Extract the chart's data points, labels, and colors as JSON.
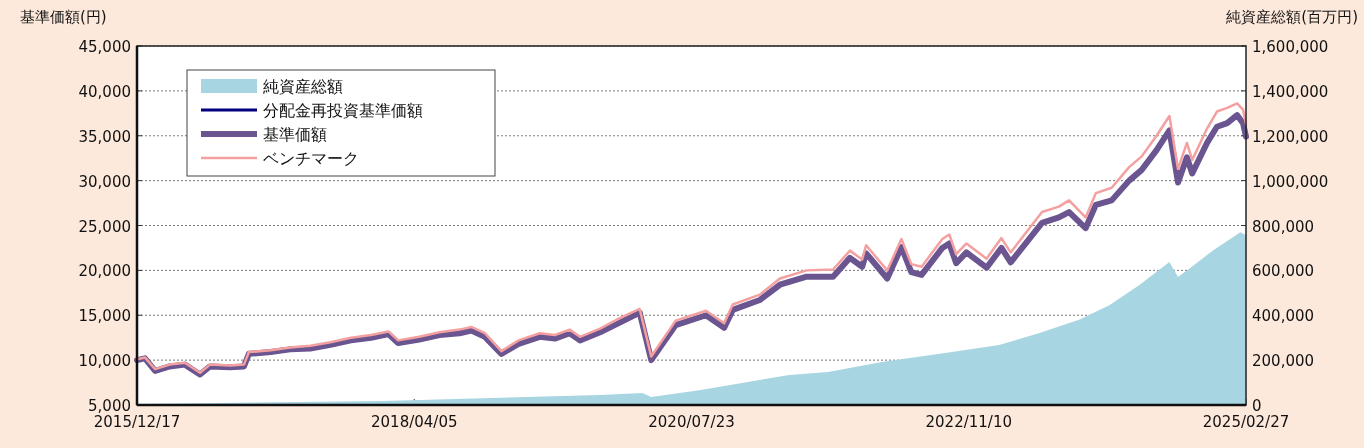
{
  "chart_data": {
    "type": "line",
    "ylabel": "基準価額(円)",
    "y2label": "純資産総額(百万円)",
    "xlim": [
      "2015-12-17",
      "2025-02-27"
    ],
    "xticks": [
      {
        "value": "2015-12-17",
        "label": "2015/12/17"
      },
      {
        "value": "2018-04-05",
        "label": "2018/04/05"
      },
      {
        "value": "2020-07-23",
        "label": "2020/07/23"
      },
      {
        "value": "2022-11-10",
        "label": "2022/11/10"
      },
      {
        "value": "2025-02-27",
        "label": "2025/02/27"
      }
    ],
    "ylim": [
      5000,
      45000
    ],
    "yticks": [
      {
        "value": 5000,
        "label": "5,000"
      },
      {
        "value": 10000,
        "label": "10,000"
      },
      {
        "value": 15000,
        "label": "15,000"
      },
      {
        "value": 20000,
        "label": "20,000"
      },
      {
        "value": 25000,
        "label": "25,000"
      },
      {
        "value": 30000,
        "label": "30,000"
      },
      {
        "value": 35000,
        "label": "35,000"
      },
      {
        "value": 40000,
        "label": "40,000"
      },
      {
        "value": 45000,
        "label": "45,000"
      }
    ],
    "y2lim": [
      0,
      1600000
    ],
    "y2ticks": [
      0,
      {
        "value": 200000,
        "label": "200,000"
      },
      {
        "value": 400000,
        "label": "400,000"
      },
      {
        "value": 600000,
        "label": "600,000"
      },
      {
        "value": 800000,
        "label": "800,000"
      },
      {
        "value": 1000000,
        "label": "1,000,000"
      },
      {
        "value": 1200000,
        "label": "1,200,000"
      },
      {
        "value": 1400000,
        "label": "1,400,000"
      },
      {
        "value": 1600000,
        "label": "1,600,000"
      }
    ],
    "grid": "y",
    "legend": "top left",
    "line_style": "solid",
    "marker": "none",
    "x": [
      "2015-12-17",
      "2016-01-10",
      "2016-02-10",
      "2016-03-25",
      "2016-05-10",
      "2016-06-25",
      "2016-07-25",
      "2016-09-25",
      "2016-11-05",
      "2016-11-20",
      "2017-01-25",
      "2017-03-25",
      "2017-05-25",
      "2017-07-25",
      "2017-09-25",
      "2017-11-25",
      "2018-01-17",
      "2018-02-15",
      "2018-04-20",
      "2018-06-20",
      "2018-08-20",
      "2018-09-25",
      "2018-11-05",
      "2018-12-25",
      "2019-02-15",
      "2019-04-20",
      "2019-06-05",
      "2019-07-20",
      "2019-08-20",
      "2019-10-20",
      "2019-12-20",
      "2020-02-17",
      "2020-03-23",
      "2020-06-05",
      "2020-09-05",
      "2020-10-30",
      "2020-11-25",
      "2021-02-15",
      "2021-04-17",
      "2021-07-07",
      "2021-09-25",
      "2021-11-15",
      "2021-12-22",
      "2022-01-03",
      "2022-03-08",
      "2022-04-20",
      "2022-05-20",
      "2022-06-20",
      "2022-08-22",
      "2022-09-12",
      "2022-10-03",
      "2022-11-03",
      "2023-01-03",
      "2023-02-17",
      "2023-03-17",
      "2023-06-20",
      "2023-08-10",
      "2023-09-10",
      "2023-10-30",
      "2023-11-30",
      "2024-01-17",
      "2024-03-10",
      "2024-04-17",
      "2024-06-01",
      "2024-07-10",
      "2024-08-05",
      "2024-09-01",
      "2024-09-17",
      "2024-11-01",
      "2024-12-01",
      "2025-01-01",
      "2025-01-31",
      "2025-02-18",
      "2025-02-27"
    ],
    "series": [
      {
        "name": "純資産総額",
        "type": "area",
        "axis": "y2",
        "color": "#a8d5e2",
        "x": [
          "2015-12-17",
          "2018-01-01",
          "2019-10-20",
          "2020-02-25",
          "2020-03-23",
          "2020-08-20",
          "2021-05-15",
          "2021-09-10",
          "2022-02-20",
          "2022-09-20",
          "2023-02-10",
          "2023-06-10",
          "2023-10-10",
          "2024-01-10",
          "2024-04-10",
          "2024-07-10",
          "2024-08-05",
          "2024-09-10",
          "2024-11-20",
          "2025-02-10",
          "2025-02-27"
        ],
        "values": [
          5000,
          18000,
          45000,
          53000,
          36000,
          67000,
          134000,
          147000,
          192000,
          236000,
          267000,
          320000,
          380000,
          445000,
          535000,
          637000,
          570000,
          610000,
          690000,
          770000,
          757000
        ]
      },
      {
        "name": "分配金再投資基準価額",
        "color": "#000080",
        "values": [
          null,
          null,
          null,
          null,
          null,
          null,
          null,
          null,
          null,
          null,
          null,
          null,
          null,
          null,
          null,
          null,
          null,
          null,
          null,
          null,
          null,
          null,
          null,
          null,
          null,
          null,
          null,
          null,
          null,
          null,
          null,
          null,
          null,
          null,
          null,
          null,
          null,
          null,
          null,
          null,
          null,
          null,
          null,
          null,
          null,
          null,
          null,
          null,
          null,
          null,
          null,
          null,
          null,
          null,
          null,
          null,
          null,
          null,
          null,
          null,
          null,
          null,
          null,
          null,
          null,
          null,
          null,
          null,
          null,
          null,
          null,
          null,
          null,
          null
        ]
      },
      {
        "name": "基準価額",
        "color": "#6a5590",
        "values": [
          10000,
          10200,
          8800,
          9300,
          9500,
          8400,
          9300,
          9200,
          9300,
          10700,
          10900,
          11200,
          11300,
          11700,
          12200,
          12500,
          12900,
          11900,
          12300,
          12800,
          13000,
          13300,
          12600,
          10700,
          11800,
          12600,
          12400,
          13000,
          12200,
          13100,
          14200,
          15300,
          10000,
          13900,
          15000,
          13600,
          15600,
          16700,
          18400,
          19300,
          19300,
          21400,
          20400,
          21900,
          19100,
          22600,
          19800,
          19500,
          22500,
          23000,
          20800,
          22000,
          20300,
          22500,
          20900,
          25300,
          25900,
          26500,
          24700,
          27300,
          27800,
          30000,
          31200,
          33400,
          35600,
          29800,
          32600,
          30800,
          34200,
          36000,
          36400,
          37300,
          36400,
          34900
        ]
      },
      {
        "name": "ベンチマーク",
        "color": "#f4a0a0",
        "values": [
          10100,
          10300,
          9000,
          9500,
          9700,
          8600,
          9500,
          9400,
          9500,
          10900,
          11100,
          11400,
          11600,
          12000,
          12500,
          12800,
          13200,
          12200,
          12600,
          13100,
          13400,
          13700,
          13000,
          11000,
          12200,
          13000,
          12800,
          13400,
          12600,
          13500,
          14700,
          15700,
          10400,
          14400,
          15500,
          14100,
          16200,
          17300,
          19100,
          20000,
          20100,
          22200,
          21200,
          22800,
          20000,
          23500,
          20700,
          20400,
          23500,
          24000,
          21800,
          23000,
          21300,
          23600,
          22000,
          26500,
          27100,
          27800,
          25900,
          28600,
          29200,
          31500,
          32700,
          35000,
          37200,
          31300,
          34200,
          32300,
          35800,
          37700,
          38100,
          38600,
          37900,
          36300
        ]
      }
    ]
  }
}
